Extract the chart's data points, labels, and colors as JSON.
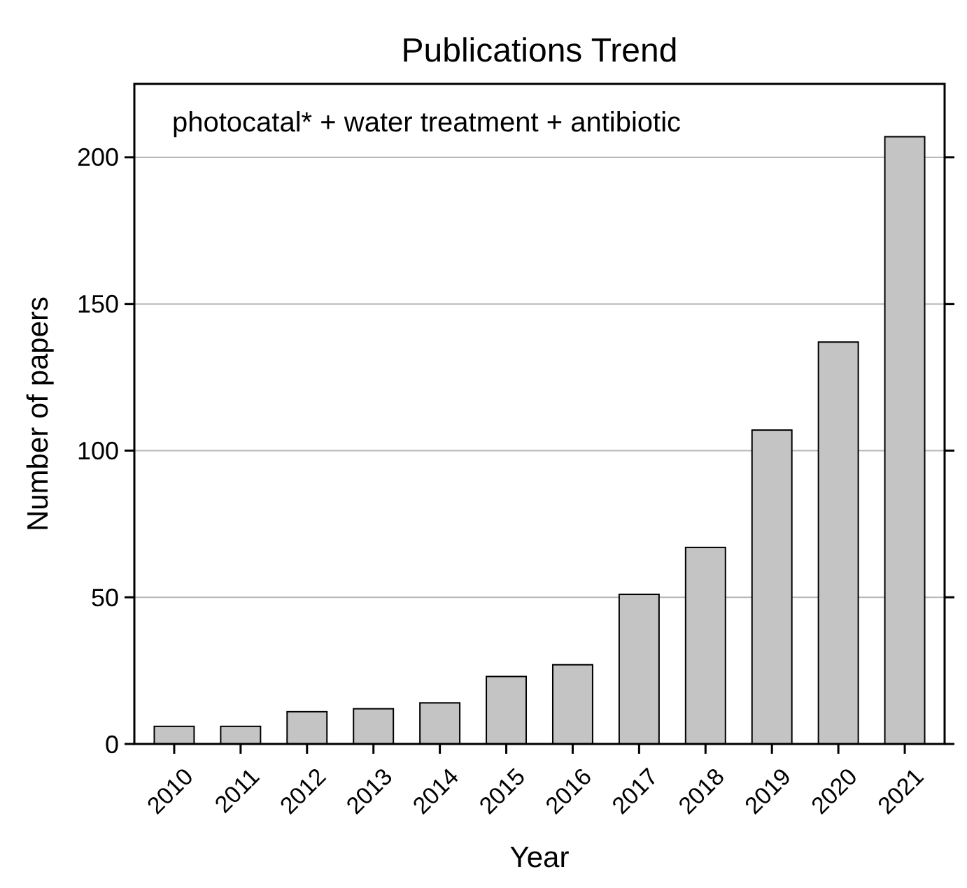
{
  "chart_data": {
    "type": "bar",
    "title": "Publications Trend",
    "xlabel": "Year",
    "ylabel": "Number of papers",
    "annotations": [
      "photocatal* + water treatment + antibiotic"
    ],
    "categories": [
      "2010",
      "2011",
      "2012",
      "2013",
      "2014",
      "2015",
      "2016",
      "2017",
      "2018",
      "2019",
      "2020",
      "2021"
    ],
    "values": [
      6,
      6,
      11,
      12,
      14,
      23,
      27,
      51,
      67,
      107,
      137,
      207
    ],
    "color": "#c4c4c4",
    "ylim": [
      0,
      225
    ],
    "yticks": [
      0,
      50,
      100,
      150,
      200
    ],
    "grid": "y"
  }
}
